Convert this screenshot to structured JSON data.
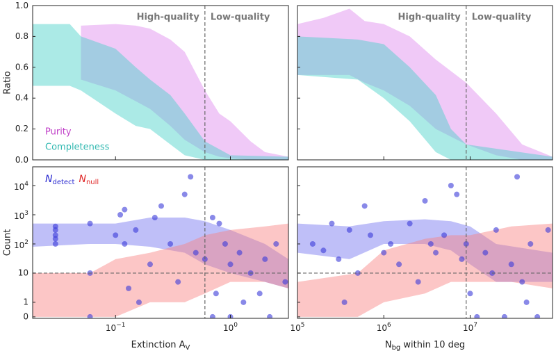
{
  "chart_data": [
    {
      "type": "band",
      "ylabel": "Ratio",
      "xscale": "log",
      "xlim": [
        0.019,
        3.2
      ],
      "ylim": [
        0,
        1
      ],
      "xticks": [
        0.1,
        1
      ],
      "xtick_labels": false,
      "ytick_labels": true,
      "yticks": [
        {
          "value": 0,
          "label": "0.0"
        },
        0.2,
        0.4,
        0.6,
        0.8,
        {
          "value": 1,
          "label": "1.0"
        }
      ],
      "vline": 0.6,
      "annotations": [
        {
          "text": "High-quality"
        },
        {
          "text": "Low-quality"
        }
      ],
      "legend": "lower left",
      "series": [
        {
          "name": "Purity",
          "color": "#dd88ee",
          "text_color": "#c040c8",
          "x": [
            0.05,
            0.1,
            0.15,
            0.2,
            0.3,
            0.4,
            0.6,
            0.8,
            1.0,
            1.5,
            2.0,
            3.2
          ],
          "upper": [
            0.87,
            0.88,
            0.87,
            0.85,
            0.78,
            0.7,
            0.45,
            0.3,
            0.25,
            0.12,
            0.05,
            0.02
          ],
          "lower": [
            0.52,
            0.45,
            0.38,
            0.33,
            0.22,
            0.13,
            0.05,
            0.02,
            0.01,
            0,
            0,
            0
          ]
        },
        {
          "name": "Completeness",
          "color": "#44d0c8",
          "text_color": "#30b8b0",
          "x": [
            0.019,
            0.04,
            0.05,
            0.1,
            0.15,
            0.2,
            0.3,
            0.4,
            0.6,
            1.0,
            3.2
          ],
          "upper": [
            0.88,
            0.88,
            0.8,
            0.72,
            0.6,
            0.52,
            0.42,
            0.3,
            0.12,
            0.03,
            0.02
          ],
          "lower": [
            0.48,
            0.48,
            0.45,
            0.3,
            0.22,
            0.2,
            0.1,
            0.03,
            0,
            0,
            0
          ]
        }
      ]
    },
    {
      "type": "band",
      "xscale": "log",
      "xlim": [
        100000,
        90000000
      ],
      "ylim": [
        0,
        1
      ],
      "xticks": [
        100000,
        1000000,
        10000000
      ],
      "xtick_labels": false,
      "ytick_labels": false,
      "yticks": [
        0,
        0.2,
        0.4,
        0.6,
        0.8,
        1
      ],
      "vline": 9000000,
      "annotations": [
        {
          "text": "High-quality"
        },
        {
          "text": "Low-quality"
        }
      ],
      "series": [
        {
          "color": "#dd88ee",
          "x": [
            100000,
            200000,
            400000,
            600000,
            1000000,
            2000000,
            4000000,
            9000000,
            20000000,
            40000000,
            90000000
          ],
          "upper": [
            0.88,
            0.92,
            0.98,
            0.9,
            0.88,
            0.8,
            0.65,
            0.5,
            0.3,
            0.1,
            0.02
          ],
          "lower": [
            0.55,
            0.55,
            0.55,
            0.5,
            0.45,
            0.35,
            0.2,
            0.1,
            0.03,
            0,
            0
          ]
        },
        {
          "color": "#44d0c8",
          "x": [
            100000,
            500000,
            1000000,
            2000000,
            4000000,
            6000000,
            9000000,
            90000000
          ],
          "upper": [
            0.8,
            0.78,
            0.75,
            0.6,
            0.42,
            0.2,
            0.1,
            0.02
          ],
          "lower": [
            0.55,
            0.52,
            0.4,
            0.25,
            0.05,
            0,
            0,
            0
          ]
        }
      ]
    },
    {
      "type": "band_scatter",
      "ylabel": "Count",
      "xlabel": [
        {
          "text": "Extinction A"
        },
        {
          "text": "V",
          "sub": true
        }
      ],
      "xscale": "log",
      "xlim": [
        0.019,
        3.2
      ],
      "yscale": "symlog",
      "linscale": 0.5,
      "ylim": [
        -0.1,
        44000
      ],
      "xticks": [
        {
          "value": 0.1,
          "label": "10",
          "exp": "−1"
        },
        {
          "value": 1,
          "label": "10",
          "exp": "0"
        }
      ],
      "xtick_labels": true,
      "ytick_labels": true,
      "yticks": [
        0,
        1,
        10,
        {
          "value": 100,
          "label": "10",
          "exp": "2"
        },
        {
          "value": 1000,
          "label": "10",
          "exp": "3"
        },
        {
          "value": 10000,
          "label": "10",
          "exp": "4"
        }
      ],
      "vline": 0.6,
      "hline": 10,
      "legend": "upper left",
      "series": [
        {
          "name": "N",
          "name_sub": "detect",
          "color": "#7070f0",
          "text_color": "#2a2ad0",
          "x": [
            0.019,
            0.06,
            0.1,
            0.2,
            0.4,
            0.6,
            1.0,
            2.0,
            3.2
          ],
          "upper": [
            500,
            500,
            500,
            800,
            800,
            600,
            300,
            100,
            30
          ],
          "lower": [
            80,
            100,
            100,
            80,
            50,
            20,
            10,
            5,
            3
          ]
        },
        {
          "name": "N",
          "name_sub": "null",
          "color": "#f88080",
          "text_color": "#e02828",
          "x": [
            0.019,
            0.06,
            0.1,
            0.2,
            0.4,
            0.6,
            1.0,
            2.0,
            3.2
          ],
          "upper": [
            10,
            10,
            30,
            50,
            100,
            200,
            300,
            400,
            500
          ],
          "lower": [
            0,
            0,
            0,
            1,
            1,
            2,
            5,
            5,
            3
          ]
        },
        {
          "type": "scatter",
          "color": "#3a3ad8",
          "x": [
            0.03,
            0.03,
            0.03,
            0.03,
            0.03,
            0.06,
            0.06,
            0.06,
            0.1,
            0.11,
            0.12,
            0.12,
            0.13,
            0.15,
            0.16,
            0.2,
            0.22,
            0.25,
            0.3,
            0.35,
            0.4,
            0.45,
            0.5,
            0.6,
            0.7,
            0.7,
            0.75,
            0.8,
            0.9,
            1.0,
            1.0,
            1.2,
            1.3,
            1.5,
            1.8,
            2.0,
            2.2,
            2.5,
            3.0
          ],
          "values": [
            400,
            300,
            200,
            150,
            100,
            500,
            10,
            0,
            200,
            1000,
            1500,
            100,
            3,
            300,
            1,
            20,
            800,
            2000,
            100,
            5,
            5000,
            20000,
            50,
            30,
            800,
            0,
            2,
            500,
            100,
            20,
            0,
            50,
            1,
            10,
            2,
            30,
            0,
            100,
            5
          ]
        }
      ]
    },
    {
      "type": "band_scatter",
      "xlabel": [
        {
          "text": "N"
        },
        {
          "text": "bg",
          "sub": true
        },
        {
          "text": " within 10 deg"
        }
      ],
      "xscale": "log",
      "xlim": [
        100000,
        90000000
      ],
      "yscale": "symlog",
      "linscale": 0.5,
      "ylim": [
        -0.1,
        44000
      ],
      "xticks": [
        {
          "value": 100000,
          "label": "10",
          "exp": "5"
        },
        {
          "value": 1000000,
          "label": "10",
          "exp": "6"
        },
        {
          "value": 10000000,
          "label": "10",
          "exp": "7"
        }
      ],
      "xtick_labels": true,
      "ytick_labels": false,
      "yticks": [
        0,
        1,
        10,
        100,
        1000,
        10000
      ],
      "vline": 9000000,
      "hline": 10,
      "series": [
        {
          "color": "#7070f0",
          "x": [
            100000,
            400000,
            1000000,
            3000000,
            6000000,
            10000000,
            20000000,
            90000000
          ],
          "upper": [
            500,
            400,
            600,
            700,
            600,
            400,
            100,
            50
          ],
          "lower": [
            50,
            30,
            100,
            100,
            60,
            20,
            5,
            5
          ]
        },
        {
          "color": "#f88080",
          "x": [
            100000,
            500000,
            1000000,
            3000000,
            6000000,
            10000000,
            30000000,
            90000000
          ],
          "upper": [
            5,
            10,
            60,
            150,
            200,
            200,
            400,
            500
          ],
          "lower": [
            0,
            0,
            1,
            2,
            5,
            5,
            5,
            3
          ]
        },
        {
          "type": "scatter",
          "color": "#3a3ad8",
          "x": [
            150000,
            200000,
            250000,
            300000,
            350000,
            400000,
            500000,
            600000,
            700000,
            1000000,
            1200000,
            1500000,
            2000000,
            2500000,
            3000000,
            3500000,
            4000000,
            5000000,
            6000000,
            7000000,
            8000000,
            9000000,
            10000000,
            12000000,
            15000000,
            18000000,
            20000000,
            25000000,
            30000000,
            35000000,
            40000000,
            45000000,
            50000000,
            60000000,
            80000000
          ],
          "values": [
            100,
            60,
            500,
            30,
            1,
            300,
            10,
            2000,
            200,
            50,
            100,
            20,
            500,
            5,
            3000,
            100,
            50,
            200,
            10000,
            5000,
            30,
            100,
            2,
            0,
            50,
            10,
            300,
            0,
            20,
            20000,
            5,
            1,
            100,
            0,
            300
          ]
        }
      ]
    }
  ]
}
